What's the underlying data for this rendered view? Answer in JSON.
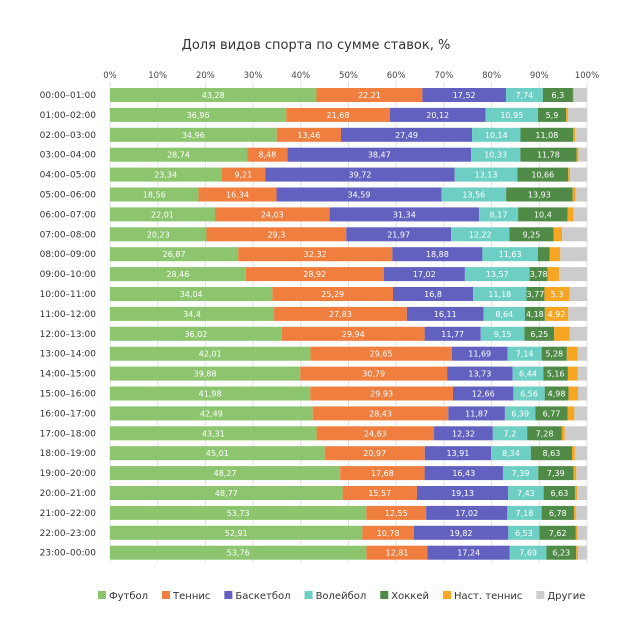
{
  "chart_data": {
    "type": "bar",
    "orientation": "horizontal",
    "stacked": true,
    "title": "Доля видов спорта по сумме ставок, %",
    "xlim": [
      0,
      100
    ],
    "x_ticks": [
      "0%",
      "10%",
      "20%",
      "30%",
      "40%",
      "50%",
      "60%",
      "70%",
      "80%",
      "90%",
      "100%"
    ],
    "grid": true,
    "legend_position": "bottom",
    "categories": [
      "00:00–01:00",
      "01:00–02:00",
      "02:00–03:00",
      "03:00–04:00",
      "04:00–05:00",
      "05:00–06:00",
      "06:00–07:00",
      "07:00–08:00",
      "08:00–09:00",
      "09:00–10:00",
      "10:00–11:00",
      "11:00–12:00",
      "12:00–13:00",
      "13:00–14:00",
      "14:00–15:00",
      "15:00–16:00",
      "16:00–17:00",
      "17:00–18:00",
      "18:00–19:00",
      "19:00–20:00",
      "20:00–21:00",
      "21:00–22:00",
      "22:00–23:00",
      "23:00–00:00"
    ],
    "series": [
      {
        "name": "Футбол",
        "color": "#8dc56e",
        "values": [
          43.28,
          36.96,
          34.96,
          28.74,
          23.34,
          18.56,
          22.01,
          20.23,
          26.87,
          28.46,
          34.04,
          34.4,
          36.02,
          42.01,
          39.88,
          41.98,
          42.49,
          43.31,
          45.01,
          48.27,
          48.77,
          53.73,
          52.91,
          53.76
        ],
        "labels": [
          "43,28",
          "36,96",
          "34,96",
          "28,74",
          "23,34",
          "18,56",
          "22,01",
          "20,23",
          "26,87",
          "28,46",
          "34,04",
          "34,4",
          "36,02",
          "42,01",
          "39,88",
          "41,98",
          "42,49",
          "43,31",
          "45,01",
          "48,27",
          "48,77",
          "53,73",
          "52,91",
          "53,76"
        ]
      },
      {
        "name": "Теннис",
        "color": "#f07e3f",
        "values": [
          22.21,
          21.68,
          13.46,
          8.48,
          9.21,
          16.34,
          24.03,
          29.3,
          32.32,
          28.92,
          25.29,
          27.83,
          29.94,
          29.65,
          30.79,
          29.93,
          28.43,
          24.63,
          20.97,
          17.68,
          15.57,
          12.55,
          10.78,
          12.81
        ],
        "labels": [
          "22,21",
          "21,68",
          "13,46",
          "8,48",
          "9,21",
          "16,34",
          "24,03",
          "29,3",
          "32,32",
          "28,92",
          "25,29",
          "27,83",
          "29,94",
          "29,65",
          "30,79",
          "29,93",
          "28,43",
          "24,63",
          "20,97",
          "17,68",
          "15,57",
          "12,55",
          "10,78",
          "12,81"
        ]
      },
      {
        "name": "Баскетбол",
        "color": "#6361c0",
        "values": [
          17.52,
          20.12,
          27.49,
          38.47,
          39.72,
          34.59,
          31.34,
          21.97,
          18.88,
          17.02,
          16.8,
          16.11,
          11.77,
          11.69,
          13.73,
          12.66,
          11.87,
          12.32,
          13.91,
          16.43,
          19.13,
          17.02,
          19.82,
          17.24
        ],
        "labels": [
          "17,52",
          "20,12",
          "27,49",
          "38,47",
          "39,72",
          "34,59",
          "31,34",
          "21,97",
          "18,88",
          "17,02",
          "16,8",
          "16,11",
          "11,77",
          "11,69",
          "13,73",
          "12,66",
          "11,87",
          "12,32",
          "13,91",
          "16,43",
          "19,13",
          "17,02",
          "19,82",
          "17,24"
        ]
      },
      {
        "name": "Волейбол",
        "color": "#6dcfc3",
        "values": [
          7.74,
          10.95,
          10.14,
          10.33,
          13.13,
          13.56,
          8.17,
          12.22,
          11.63,
          13.57,
          11.18,
          8.64,
          9.15,
          7.14,
          6.44,
          6.56,
          6.39,
          7.2,
          8.34,
          7.39,
          7.43,
          7.18,
          6.53,
          7.69
        ],
        "labels": [
          "7,74",
          "10,95",
          "10,14",
          "10,33",
          "13,13",
          "13,56",
          "8,17",
          "12,22",
          "11,63",
          "13,57",
          "11,18",
          "8,64",
          "9,15",
          "7,14",
          "6,44",
          "6,56",
          "6,39",
          "7,2",
          "8,34",
          "7,39",
          "7,43",
          "7,18",
          "6,53",
          "7,69"
        ]
      },
      {
        "name": "Хоккей",
        "color": "#4f8a47",
        "values": [
          6.3,
          5.9,
          11.08,
          11.78,
          10.66,
          13.93,
          10.4,
          9.25,
          2.5,
          3.78,
          3.77,
          4.18,
          6.25,
          5.28,
          5.16,
          4.98,
          6.77,
          7.28,
          8.63,
          7.39,
          6.63,
          6.78,
          7.62,
          6.23
        ],
        "labels": [
          "6,3",
          "5,9",
          "11,08",
          "11,78",
          "10,66",
          "13,93",
          "10,4",
          "9,25",
          "",
          "3,78",
          "3,77",
          "4,18",
          "6,25",
          "5,28",
          "5,16",
          "4,98",
          "6,77",
          "7,28",
          "8,63",
          "7,39",
          "6,63",
          "6,78",
          "7,62",
          "6,23"
        ]
      },
      {
        "name": "Наст. теннис",
        "color": "#f6a623",
        "values": [
          0.2,
          0.4,
          0.4,
          0.4,
          0.4,
          0.6,
          1.2,
          1.8,
          2.2,
          2.4,
          5.3,
          4.92,
          3.2,
          2.3,
          2.1,
          2.0,
          1.4,
          0.6,
          0.6,
          0.6,
          0.4,
          0.4,
          0.4,
          0.4
        ],
        "labels": [
          "",
          "",
          "",
          "",
          "",
          "",
          "",
          "",
          "",
          "",
          "5,3",
          "4,92",
          "",
          "",
          "",
          "",
          "",
          "",
          "",
          "",
          "",
          "",
          "",
          ""
        ]
      },
      {
        "name": "Другие",
        "color": "#cccccc",
        "values": [
          2.75,
          3.99,
          2.47,
          1.8,
          3.54,
          2.42,
          2.85,
          5.23,
          5.6,
          5.85,
          3.62,
          3.92,
          3.67,
          1.93,
          1.9,
          1.89,
          2.65,
          4.66,
          2.54,
          2.24,
          2.07,
          2.34,
          1.94,
          1.87
        ],
        "labels": [
          "",
          "",
          "",
          "",
          "",
          "",
          "",
          "",
          "",
          "",
          "",
          "",
          "",
          "",
          "",
          "",
          "",
          "",
          "",
          "",
          "",
          "",
          "",
          ""
        ]
      }
    ]
  }
}
